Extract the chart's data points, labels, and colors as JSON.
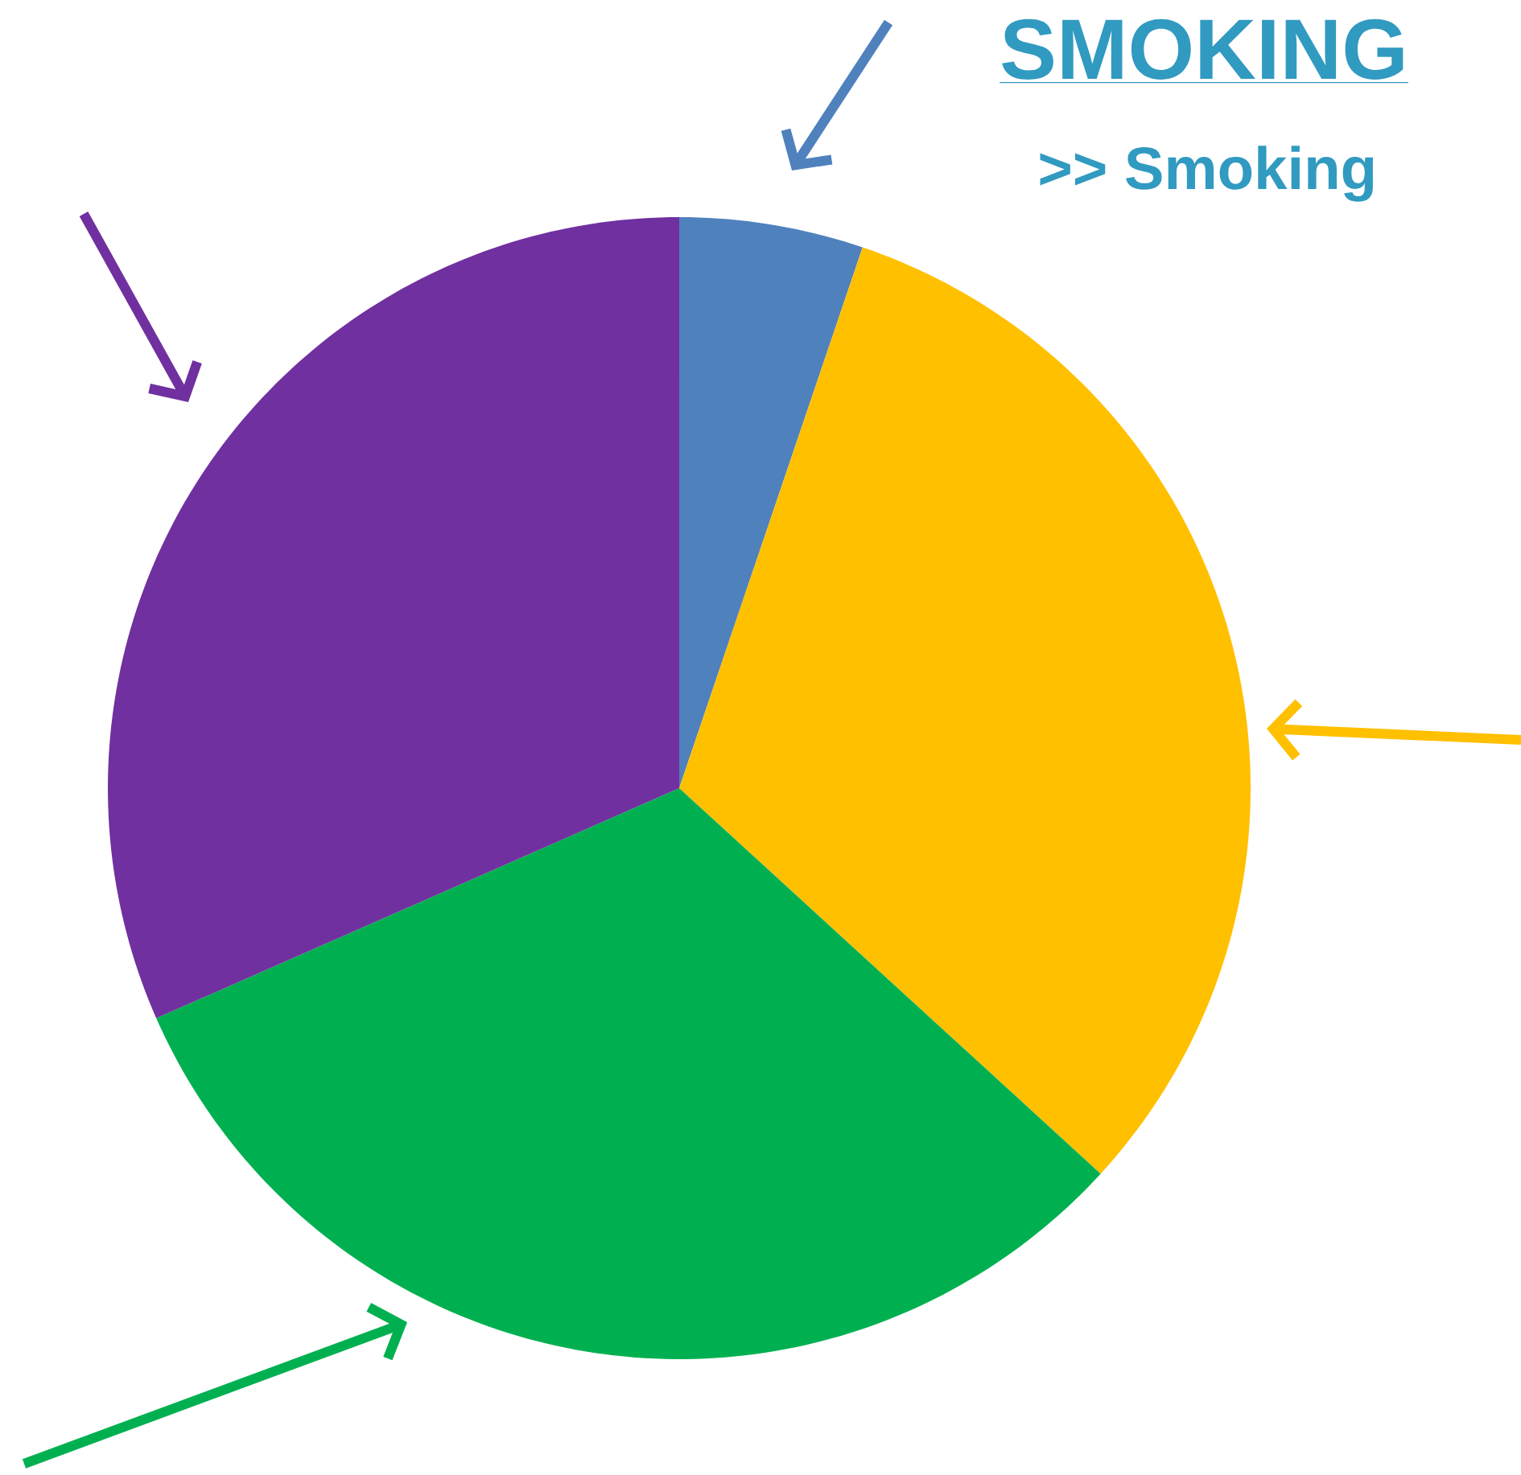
{
  "chart_data": {
    "type": "pie",
    "title": "SMOKING",
    "subtitle": ">> Smoking",
    "categories": [
      null,
      null,
      null,
      null
    ],
    "values": [
      5.2,
      31.6,
      31.6,
      31.6
    ],
    "colors": [
      "#4f81bd",
      "#ffc000",
      "#00b050",
      "#7030a0"
    ]
  }
}
